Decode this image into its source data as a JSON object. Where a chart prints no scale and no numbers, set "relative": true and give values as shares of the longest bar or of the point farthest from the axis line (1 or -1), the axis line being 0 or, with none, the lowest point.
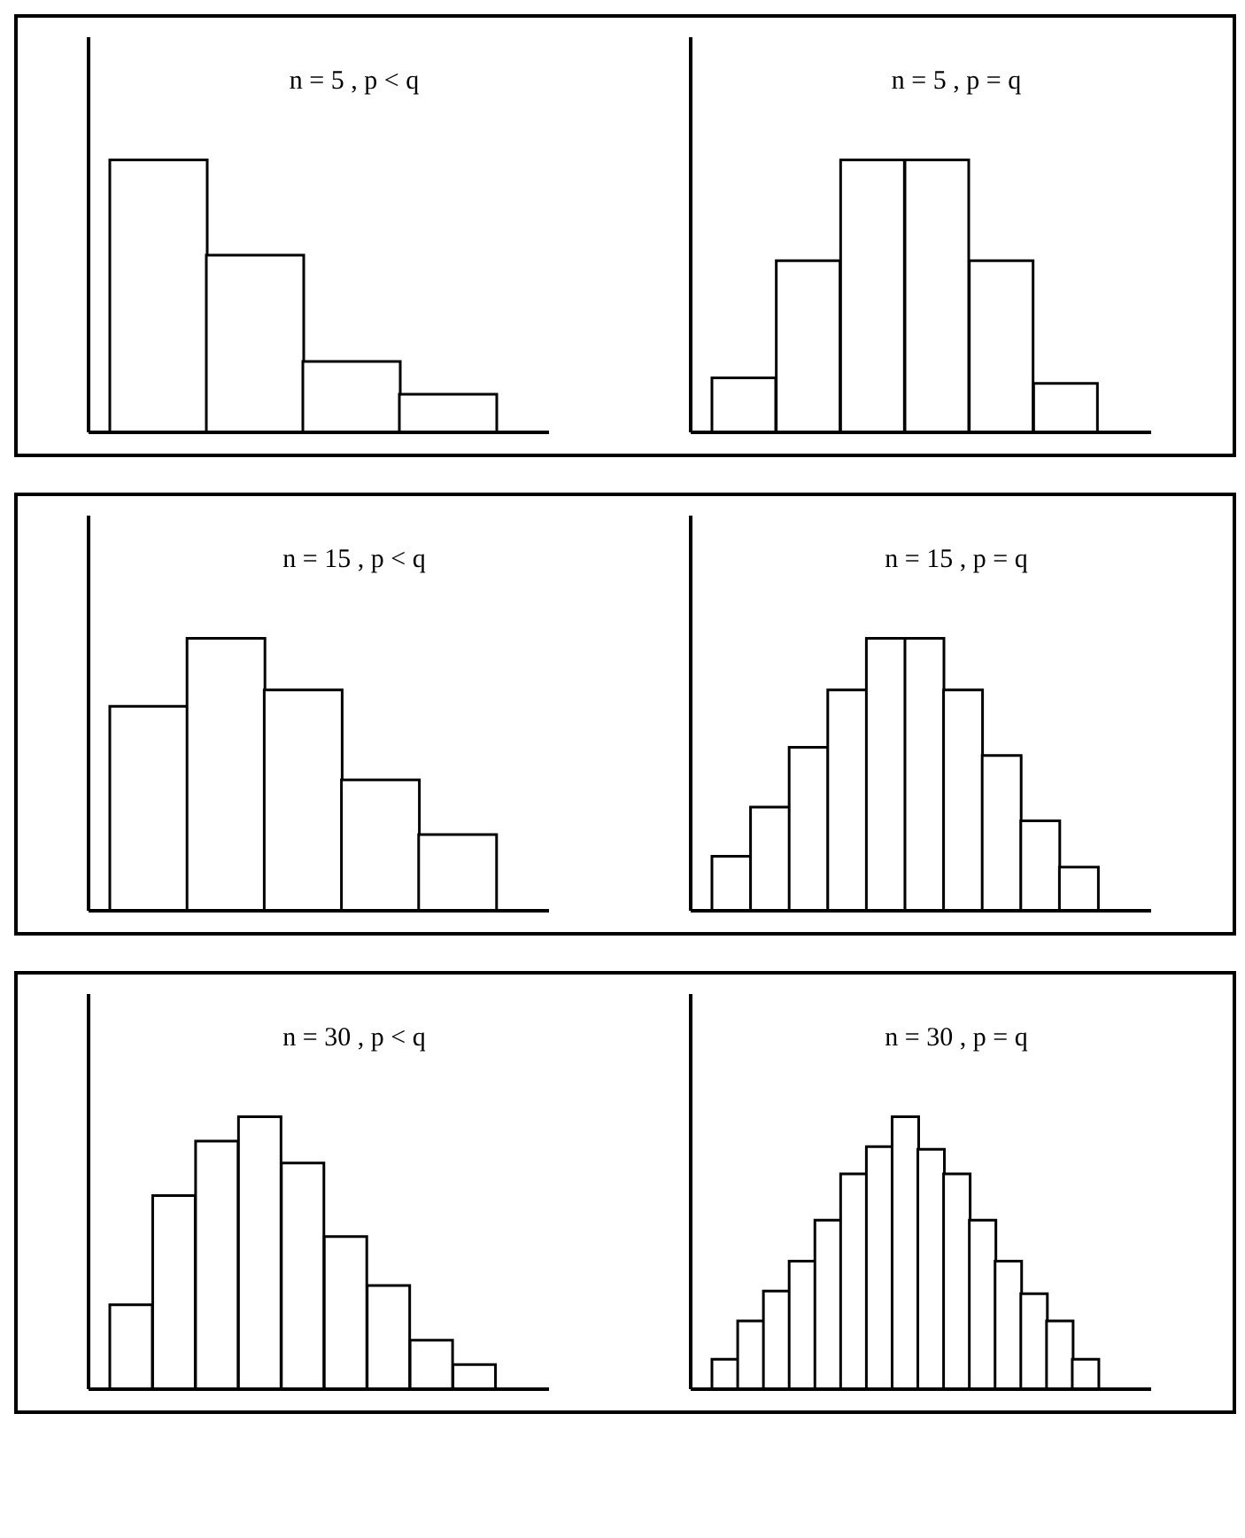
{
  "chart_data": [
    {
      "type": "bar",
      "title": "n = 5 , p < q",
      "relative": true,
      "categories": [
        null,
        null,
        null,
        null
      ],
      "series": [
        {
          "color": "#ffffff",
          "values": [
            1,
            0.65,
            0.26,
            0.14
          ]
        }
      ]
    },
    {
      "type": "bar",
      "title": "n = 5 , p = q",
      "relative": true,
      "categories": [
        null,
        null,
        null,
        null,
        null,
        null
      ],
      "series": [
        {
          "color": "#ffffff",
          "values": [
            0.2,
            0.63,
            1,
            1,
            0.63,
            0.18
          ]
        }
      ]
    },
    {
      "type": "bar",
      "title": "n = 15 , p < q",
      "relative": true,
      "categories": [
        null,
        null,
        null,
        null,
        null
      ],
      "series": [
        {
          "color": "#ffffff",
          "values": [
            0.75,
            1,
            0.81,
            0.48,
            0.28
          ]
        }
      ]
    },
    {
      "type": "bar",
      "title": "n = 15 , p = q",
      "relative": true,
      "categories": [
        null,
        null,
        null,
        null,
        null,
        null,
        null,
        null,
        null,
        null
      ],
      "series": [
        {
          "color": "#ffffff",
          "values": [
            0.2,
            0.38,
            0.6,
            0.81,
            1,
            1,
            0.81,
            0.57,
            0.33,
            0.16
          ]
        }
      ]
    },
    {
      "type": "bar",
      "title": "n = 30 , p < q",
      "relative": true,
      "categories": [
        null,
        null,
        null,
        null,
        null,
        null,
        null,
        null,
        null
      ],
      "series": [
        {
          "color": "#ffffff",
          "values": [
            0.31,
            0.71,
            0.91,
            1,
            0.83,
            0.56,
            0.38,
            0.18,
            0.09
          ]
        }
      ]
    },
    {
      "type": "bar",
      "title": "n = 30 , p = q",
      "relative": true,
      "categories": [
        null,
        null,
        null,
        null,
        null,
        null,
        null,
        null,
        null,
        null,
        null,
        null,
        null,
        null,
        null
      ],
      "series": [
        {
          "color": "#ffffff",
          "values": [
            0.11,
            0.25,
            0.36,
            0.47,
            0.62,
            0.79,
            0.89,
            1,
            0.88,
            0.79,
            0.62,
            0.47,
            0.35,
            0.25,
            0.11
          ]
        }
      ]
    }
  ]
}
